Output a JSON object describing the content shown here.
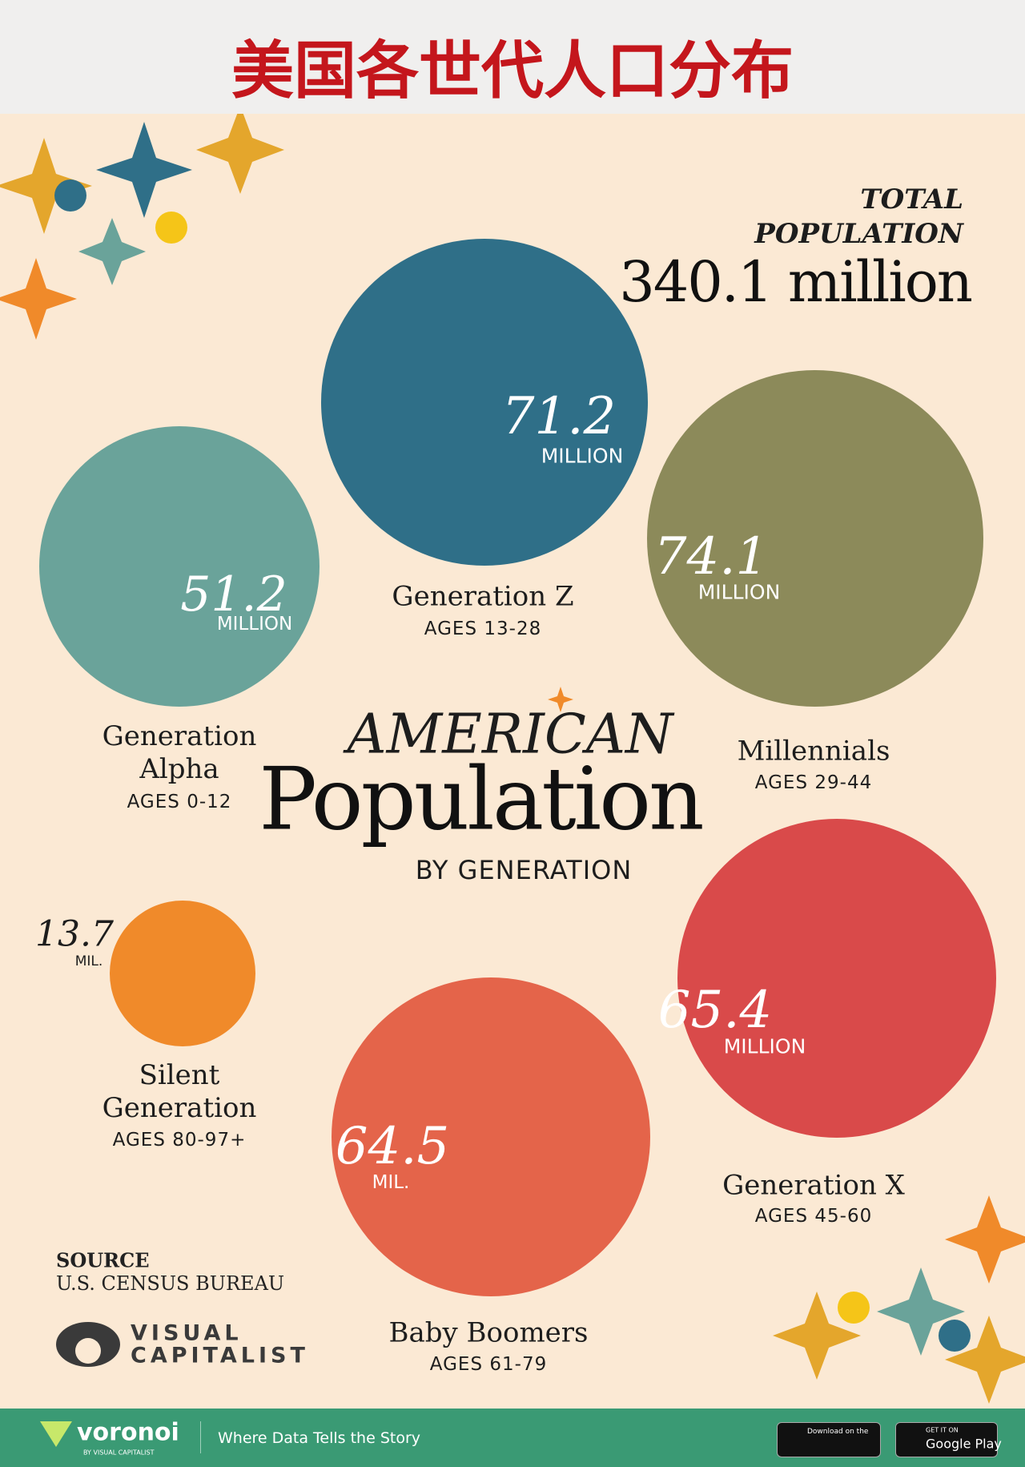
{
  "header": {
    "title": "美国各世代人口分布"
  },
  "total": {
    "label_line1": "TOTAL",
    "label_line2": "POPULATION",
    "value": "340.1 million"
  },
  "headline": {
    "line1": "AMERICAN",
    "line2": "Population",
    "line3": "BY GENERATION"
  },
  "generations": [
    {
      "name": "Generation Z",
      "ages": "AGES 13-28",
      "value": "71.2",
      "unit": "MILLION"
    },
    {
      "name": "Generation Alpha",
      "ages": "AGES 0-12",
      "value": "51.2",
      "unit": "MILLION"
    },
    {
      "name": "Millennials",
      "ages": "AGES 29-44",
      "value": "74.1",
      "unit": "MILLION"
    },
    {
      "name": "Silent Generation",
      "ages": "AGES 80-97+",
      "value": "13.7",
      "unit": "MIL."
    },
    {
      "name": "Baby Boomers",
      "ages": "AGES 61-79",
      "value": "64.5",
      "unit": "MIL."
    },
    {
      "name": "Generation X",
      "ages": "AGES 45-60",
      "value": "65.4",
      "unit": "MILLION"
    }
  ],
  "source": {
    "label": "SOURCE",
    "text": "U.S. CENSUS BUREAU"
  },
  "logo": {
    "line1": "VISUAL",
    "line2": "CAPITALIST"
  },
  "footer": {
    "brand": "voronoi",
    "brand_sub": "BY VISUAL CAPITALIST",
    "tagline": "Where Data Tells the Story",
    "app_store": "Download on the",
    "google_play_top": "GET IT ON",
    "google_play": "Google Play"
  }
}
